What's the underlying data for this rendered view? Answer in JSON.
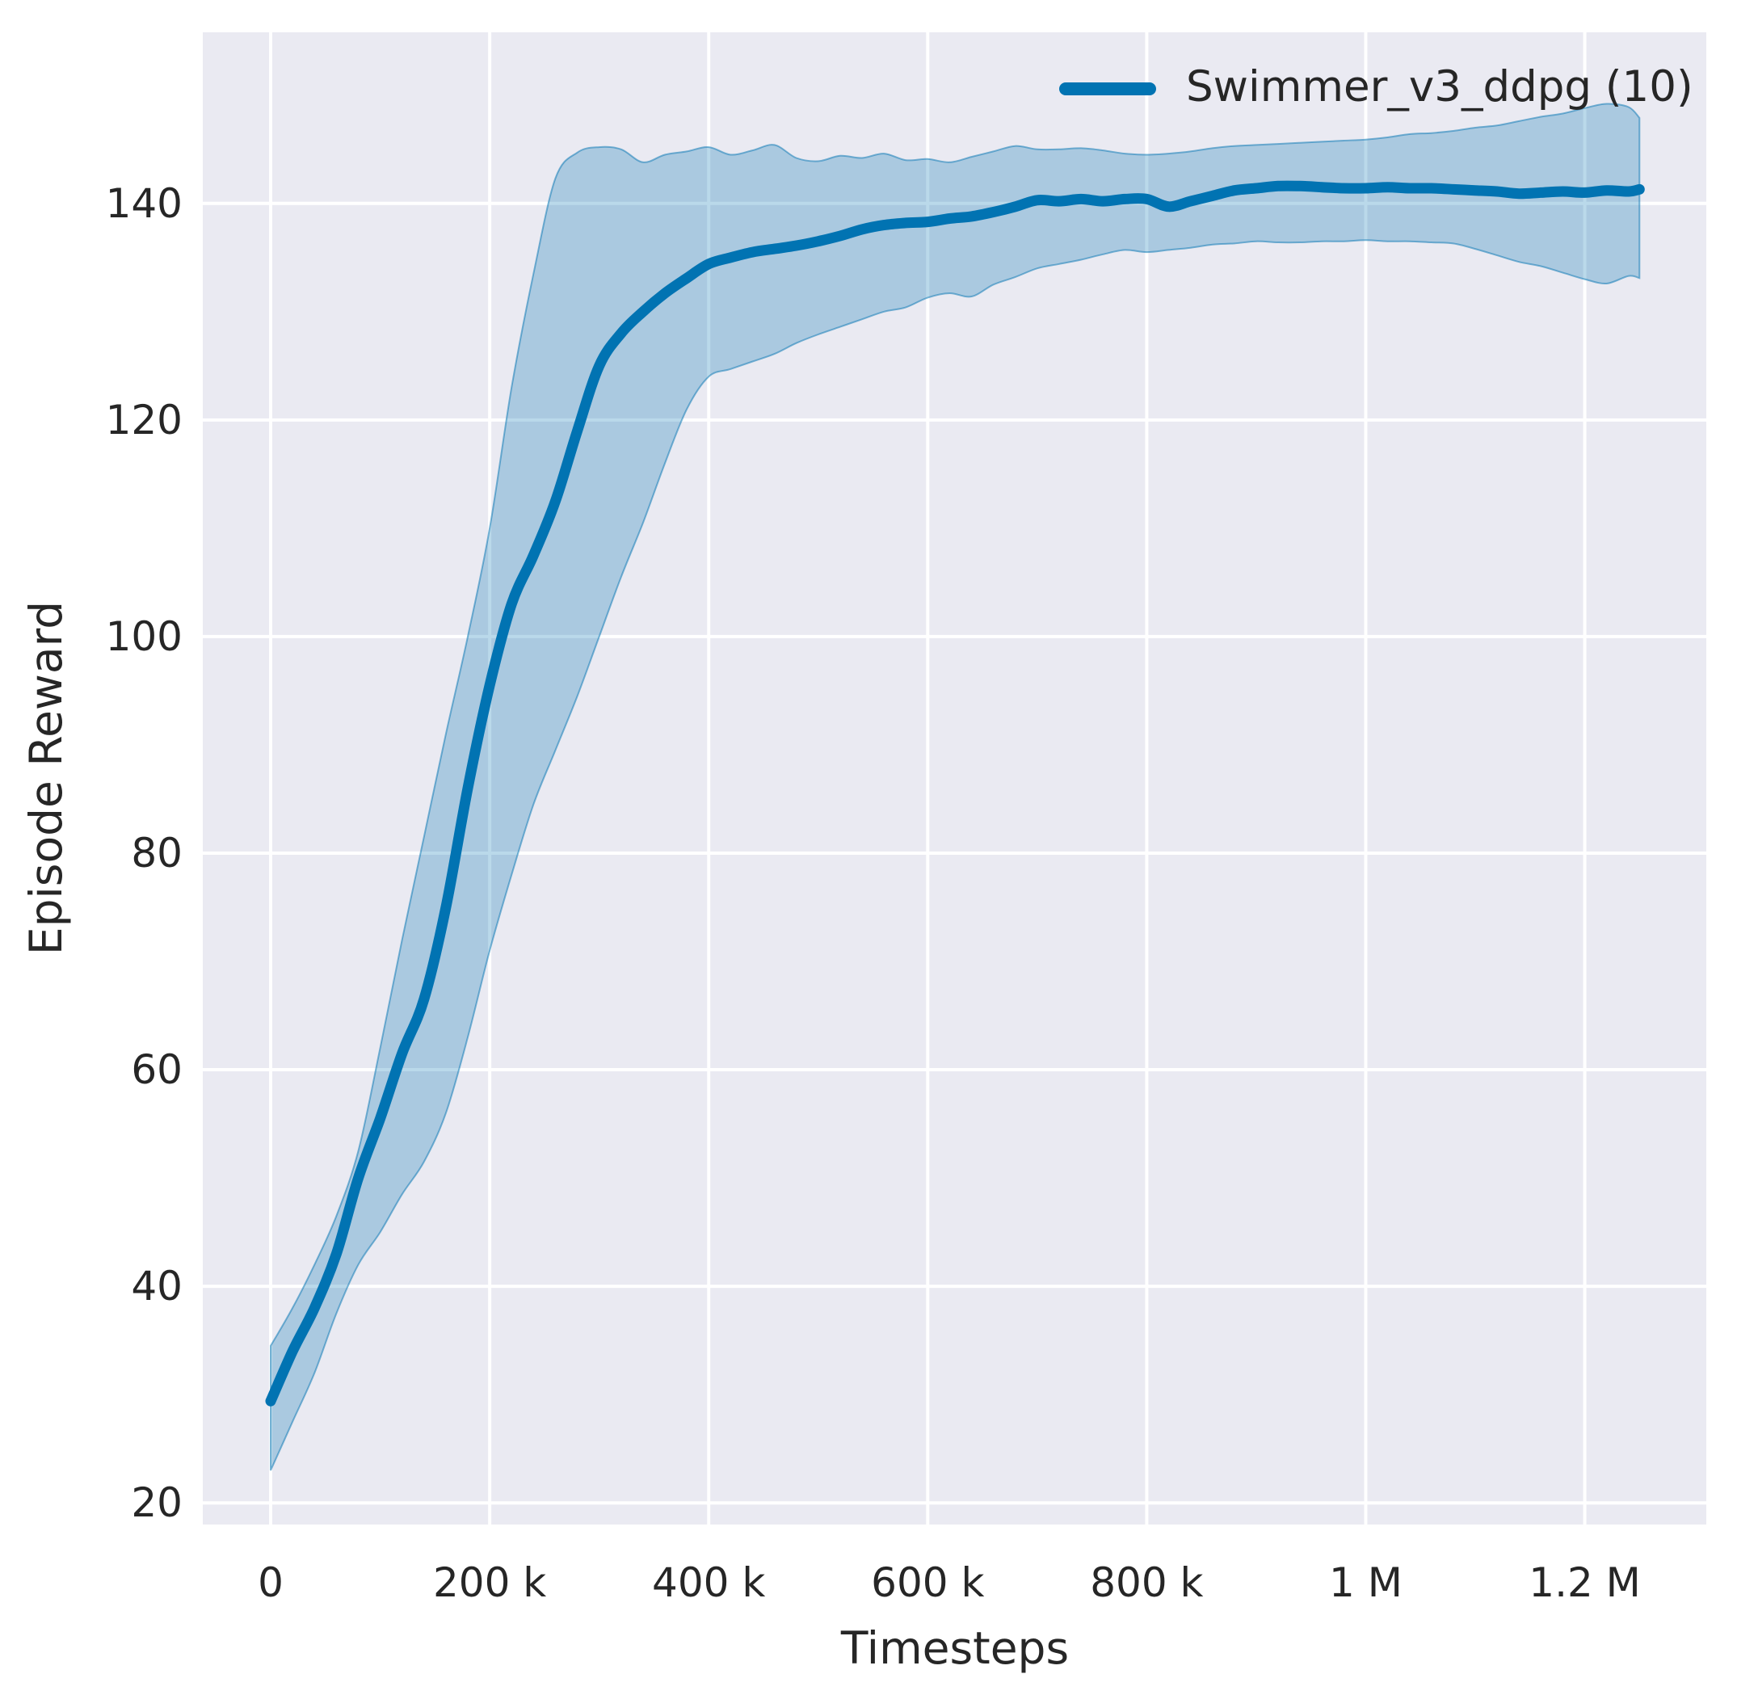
{
  "figure": {
    "background": "#ffffff",
    "axes_background": "#eaeaf2",
    "grid_color": "#ffffff",
    "text_color": "#262626"
  },
  "legend": {
    "label": "Swimmer_v3_ddpg (10)",
    "line_color": "#0173b2",
    "position": "upper right"
  },
  "chart_data": {
    "type": "line",
    "title": "",
    "xlabel": "Timesteps",
    "ylabel": "Episode Reward",
    "grid": true,
    "xlim": [
      -62000,
      1311000
    ],
    "ylim": [
      18,
      155.8
    ],
    "xticks": {
      "values": [
        0,
        200000,
        400000,
        600000,
        800000,
        1000000,
        1200000
      ],
      "labels": [
        "0",
        "200 k",
        "400 k",
        "600 k",
        "800 k",
        "1 M",
        "1.2 M"
      ]
    },
    "yticks": {
      "values": [
        20,
        40,
        60,
        80,
        100,
        120,
        140
      ],
      "labels": [
        "20",
        "40",
        "60",
        "80",
        "100",
        "120",
        "140"
      ]
    },
    "series": [
      {
        "name": "Swimmer_v3_ddpg (10)",
        "color": "#0173b2",
        "band_fill_alpha": 0.27,
        "band_edge_alpha": 0.5,
        "line_width": 13,
        "x": [
          0,
          20000,
          40000,
          60000,
          80000,
          100000,
          120000,
          140000,
          160000,
          180000,
          200000,
          220000,
          240000,
          260000,
          280000,
          300000,
          320000,
          340000,
          360000,
          380000,
          400000,
          420000,
          440000,
          460000,
          480000,
          500000,
          520000,
          540000,
          560000,
          580000,
          600000,
          620000,
          640000,
          660000,
          680000,
          700000,
          720000,
          740000,
          760000,
          780000,
          800000,
          820000,
          840000,
          860000,
          880000,
          900000,
          920000,
          940000,
          960000,
          980000,
          1000000,
          1020000,
          1040000,
          1060000,
          1080000,
          1100000,
          1120000,
          1140000,
          1160000,
          1180000,
          1200000,
          1220000,
          1240000,
          1250000
        ],
        "mean": [
          29.4,
          34,
          38,
          43,
          50,
          55.5,
          61.5,
          66.5,
          75,
          86,
          95.5,
          103,
          107.5,
          112.5,
          119,
          125,
          128,
          130,
          131.7,
          133.1,
          134.4,
          135,
          135.5,
          135.8,
          136.1,
          136.5,
          137,
          137.6,
          138,
          138.2,
          138.3,
          138.6,
          138.8,
          139.2,
          139.7,
          140.3,
          140.2,
          140.4,
          140.2,
          140.4,
          140.4,
          139.7,
          140.2,
          140.7,
          141.2,
          141.4,
          141.6,
          141.6,
          141.5,
          141.4,
          141.4,
          141.5,
          141.4,
          141.4,
          141.3,
          141.2,
          141.1,
          140.9,
          141,
          141.1,
          141,
          141.2,
          141.1,
          141.3
        ],
        "band_low": [
          23,
          27.5,
          32,
          37.5,
          42,
          45,
          48.5,
          51.5,
          56,
          63,
          71,
          78,
          84.5,
          89.5,
          94.5,
          100,
          105.5,
          110.5,
          116,
          121,
          124,
          124.7,
          125.4,
          126.1,
          127.1,
          127.9,
          128.6,
          129.3,
          130,
          130.4,
          131.3,
          131.7,
          131.4,
          132.5,
          133.2,
          134,
          134.4,
          134.8,
          135.3,
          135.7,
          135.5,
          135.7,
          135.9,
          136.2,
          136.3,
          136.5,
          136.4,
          136.4,
          136.5,
          136.5,
          136.6,
          136.5,
          136.5,
          136.4,
          136.3,
          135.8,
          135.2,
          134.6,
          134.2,
          133.6,
          133,
          132.6,
          133.3,
          133.1
        ],
        "band_high": [
          34.5,
          38,
          42,
          46.5,
          52.5,
          62,
          72,
          81.5,
          91,
          100,
          110,
          123,
          133.5,
          142.3,
          144.7,
          145.2,
          145,
          143.8,
          144.5,
          144.8,
          145.2,
          144.5,
          144.9,
          145.4,
          144.2,
          143.9,
          144.4,
          144.2,
          144.6,
          144,
          144.1,
          143.8,
          144.3,
          144.8,
          145.3,
          145,
          145,
          145.1,
          144.9,
          144.6,
          144.5,
          144.6,
          144.8,
          145.1,
          145.3,
          145.4,
          145.5,
          145.6,
          145.7,
          145.8,
          145.9,
          146.1,
          146.4,
          146.5,
          146.7,
          147,
          147.2,
          147.6,
          148,
          148.3,
          148.8,
          149.2,
          148.9,
          147.9
        ]
      }
    ]
  }
}
